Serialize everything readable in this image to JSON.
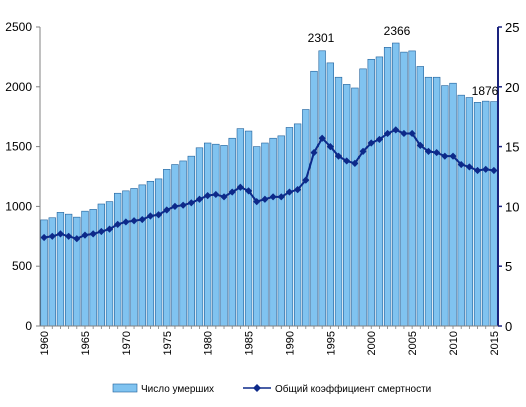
{
  "chart_data": {
    "type": "bar",
    "title": "",
    "colors": {
      "bar_fill": "#80c3f0",
      "bar_stroke": "#1f5f99",
      "line": "#0d2a8a",
      "axis_right": "#1a237e"
    },
    "x": [
      1960,
      1961,
      1962,
      1963,
      1964,
      1965,
      1966,
      1967,
      1968,
      1969,
      1970,
      1971,
      1972,
      1973,
      1974,
      1975,
      1976,
      1977,
      1978,
      1979,
      1980,
      1981,
      1982,
      1983,
      1984,
      1985,
      1986,
      1987,
      1988,
      1989,
      1990,
      1991,
      1992,
      1993,
      1994,
      1995,
      1996,
      1997,
      1998,
      1999,
      2000,
      2001,
      2002,
      2003,
      2004,
      2005,
      2006,
      2007,
      2008,
      2009,
      2010,
      2011,
      2012,
      2013,
      2014,
      2015
    ],
    "x_tick_labels": [
      "1960",
      "1965",
      "1970",
      "1975",
      "1980",
      "1985",
      "1990",
      "1995",
      "2000",
      "2005",
      "2010",
      "2015"
    ],
    "y_left": {
      "ylim": [
        0,
        2500
      ],
      "ticks": [
        "0",
        "500",
        "1000",
        "1500",
        "2000",
        "2500"
      ]
    },
    "y_right": {
      "ylim": [
        0,
        25
      ],
      "ticks": [
        "0",
        "5",
        "10",
        "15",
        "20",
        "25"
      ]
    },
    "series": [
      {
        "name": "Число умерших",
        "type": "bar",
        "axis": "left",
        "values": [
          887,
          905,
          950,
          935,
          910,
          960,
          975,
          1020,
          1040,
          1110,
          1130,
          1150,
          1180,
          1210,
          1230,
          1310,
          1350,
          1380,
          1420,
          1490,
          1530,
          1520,
          1510,
          1570,
          1650,
          1630,
          1500,
          1530,
          1570,
          1590,
          1660,
          1690,
          1810,
          2130,
          2301,
          2200,
          2080,
          2020,
          1990,
          2150,
          2230,
          2250,
          2330,
          2366,
          2290,
          2300,
          2170,
          2080,
          2080,
          2010,
          2030,
          1930,
          1910,
          1870,
          1880,
          1876
        ]
      },
      {
        "name": "Общий коэффициент смертности",
        "type": "line",
        "axis": "right",
        "values": [
          7.4,
          7.5,
          7.7,
          7.5,
          7.3,
          7.6,
          7.7,
          7.9,
          8.1,
          8.5,
          8.7,
          8.8,
          8.9,
          9.2,
          9.3,
          9.7,
          10.0,
          10.1,
          10.3,
          10.6,
          10.9,
          11.0,
          10.8,
          11.2,
          11.6,
          11.3,
          10.4,
          10.6,
          10.8,
          10.8,
          11.2,
          11.4,
          12.2,
          14.5,
          15.7,
          15.0,
          14.2,
          13.8,
          13.6,
          14.6,
          15.3,
          15.6,
          16.1,
          16.4,
          16.1,
          16.1,
          15.1,
          14.6,
          14.5,
          14.2,
          14.2,
          13.5,
          13.3,
          13.0,
          13.1,
          13.0
        ]
      }
    ],
    "annotations": [
      "2301",
      "2366",
      "1876"
    ],
    "legend": {
      "placement": "bottom",
      "items": [
        "Число умерших",
        "Общий коэффициент смертности"
      ]
    },
    "grid": false
  }
}
